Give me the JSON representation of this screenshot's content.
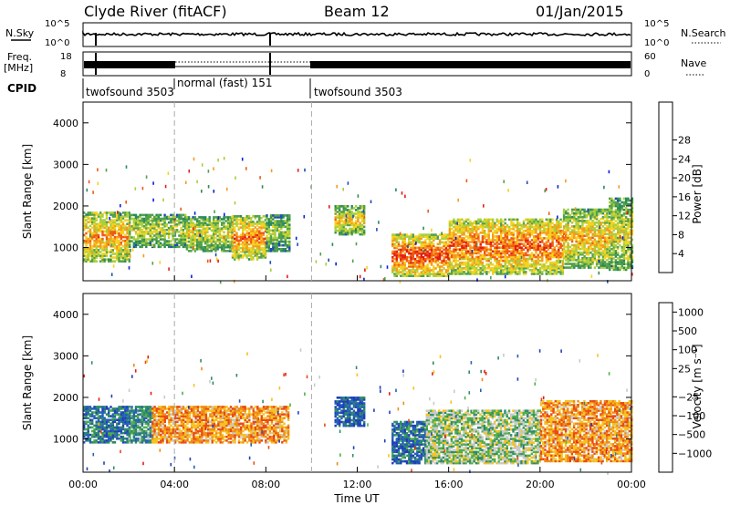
{
  "header": {
    "radar": "Clyde River (fitACF)",
    "beam": "Beam 12",
    "date": "01/Jan/2015"
  },
  "status_panels": {
    "nsky_label": "N.Sky",
    "nsearch_label": "N.Search",
    "freq_label": "Freq.",
    "freq_unit": "[MHz]",
    "nave_label": "Nave",
    "cpid_label": "CPID",
    "nsky_ticks": [
      "10^5",
      "10^0"
    ],
    "nsearch_ticks": [
      "10^5",
      "10^0"
    ],
    "freq_ticks": [
      "18",
      "8"
    ],
    "nave_ticks": [
      "60",
      "0"
    ],
    "cpid_segments": [
      {
        "label": "twofsound 3503",
        "start_hour": 0
      },
      {
        "label": "normal (fast) 151",
        "start_hour": 4
      },
      {
        "label": "twofsound 3503",
        "start_hour": 10
      }
    ]
  },
  "chart_data": [
    {
      "type": "heatmap",
      "name": "power",
      "ylabel": "Slant Range [km]",
      "ylim": [
        200,
        4500
      ],
      "yticks": [
        1000,
        2000,
        3000,
        4000
      ],
      "xlim": [
        0,
        24
      ],
      "colorbar_label": "Power [dB]",
      "colorbar_ticks": [
        "4",
        "8",
        "12",
        "16",
        "20",
        "24",
        "28"
      ],
      "colorscale": [
        "#0a1ed8",
        "#1f49b8",
        "#2b8a5a",
        "#53a04c",
        "#a8cf3c",
        "#f5d21e",
        "#f79a1a",
        "#ef5a12",
        "#e41c12"
      ],
      "echo_regions": [
        {
          "t": [
            0.0,
            2.0
          ],
          "r": [
            650,
            1850
          ],
          "level": 0.75
        },
        {
          "t": [
            2.0,
            4.5
          ],
          "r": [
            1000,
            1800
          ],
          "level": 0.55
        },
        {
          "t": [
            4.5,
            6.5
          ],
          "r": [
            900,
            1750
          ],
          "level": 0.6
        },
        {
          "t": [
            6.5,
            8.0
          ],
          "r": [
            700,
            1750
          ],
          "level": 0.8
        },
        {
          "t": [
            8.0,
            9.0
          ],
          "r": [
            900,
            1800
          ],
          "level": 0.5
        },
        {
          "t": [
            11.0,
            12.3
          ],
          "r": [
            1300,
            2000
          ],
          "level": 0.65
        },
        {
          "t": [
            13.5,
            16.0
          ],
          "r": [
            300,
            1300
          ],
          "level": 0.9
        },
        {
          "t": [
            16.0,
            21.0
          ],
          "r": [
            350,
            1700
          ],
          "level": 0.85
        },
        {
          "t": [
            21.0,
            23.0
          ],
          "r": [
            500,
            1900
          ],
          "level": 0.7
        },
        {
          "t": [
            23.0,
            24.0
          ],
          "r": [
            450,
            2200
          ],
          "level": 0.6
        }
      ]
    },
    {
      "type": "heatmap",
      "name": "velocity",
      "ylabel": "Slant Range [km]",
      "ylim": [
        200,
        4500
      ],
      "yticks": [
        1000,
        2000,
        3000,
        4000
      ],
      "xlim": [
        0,
        24
      ],
      "xticks": [
        "00:00",
        "04:00",
        "08:00",
        "12:00",
        "16:00",
        "20:00",
        "00:00"
      ],
      "xlabel": "Time UT",
      "colorbar_label": "Velocity [m s⁻¹]",
      "colorbar_ticks": [
        "1000",
        "500",
        "100",
        "25",
        "−25",
        "−100",
        "−500",
        "−1000"
      ],
      "colorscale": [
        "#1f3fb8",
        "#2560b8",
        "#2f8a66",
        "#4fae4a",
        "#c9c9c9",
        "#f5c21e",
        "#f08a18",
        "#ea4a14",
        "#e41c12"
      ],
      "echo_regions": [
        {
          "t": [
            0.0,
            2.0
          ],
          "r": [
            900,
            1800
          ],
          "level": 0.2
        },
        {
          "t": [
            2.0,
            3.0
          ],
          "r": [
            900,
            1800
          ],
          "level": 0.3
        },
        {
          "t": [
            3.0,
            9.0
          ],
          "r": [
            900,
            1800
          ],
          "level": 0.7
        },
        {
          "t": [
            11.0,
            12.3
          ],
          "r": [
            1300,
            2000
          ],
          "level": 0.15
        },
        {
          "t": [
            13.5,
            15.0
          ],
          "r": [
            400,
            1400
          ],
          "level": 0.2
        },
        {
          "t": [
            15.0,
            20.0
          ],
          "r": [
            400,
            1700
          ],
          "level": 0.45
        },
        {
          "t": [
            20.0,
            24.0
          ],
          "r": [
            450,
            1900
          ],
          "level": 0.7
        }
      ],
      "divider_hours": [
        4,
        10
      ]
    }
  ]
}
